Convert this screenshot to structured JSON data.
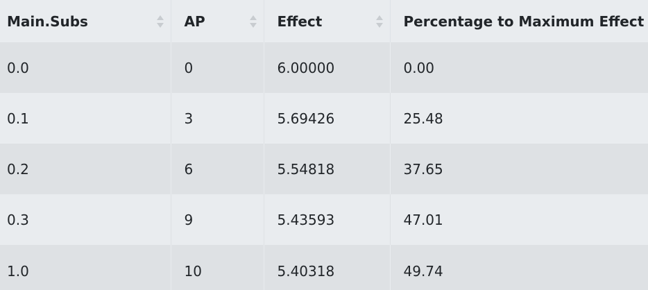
{
  "table": {
    "headers": [
      "Main.Subs",
      "AP",
      "Effect",
      "Percentage to Maximum Effect"
    ],
    "rows": [
      [
        "0.0",
        "0",
        "6.00000",
        "0.00"
      ],
      [
        "0.1",
        "3",
        "5.69426",
        "25.48"
      ],
      [
        "0.2",
        "6",
        "5.54818",
        "37.65"
      ],
      [
        "0.3",
        "9",
        "5.43593",
        "47.01"
      ],
      [
        "1.0",
        "10",
        "5.40318",
        "49.74"
      ]
    ]
  },
  "icons": {
    "sort": "sort-both-icon"
  }
}
